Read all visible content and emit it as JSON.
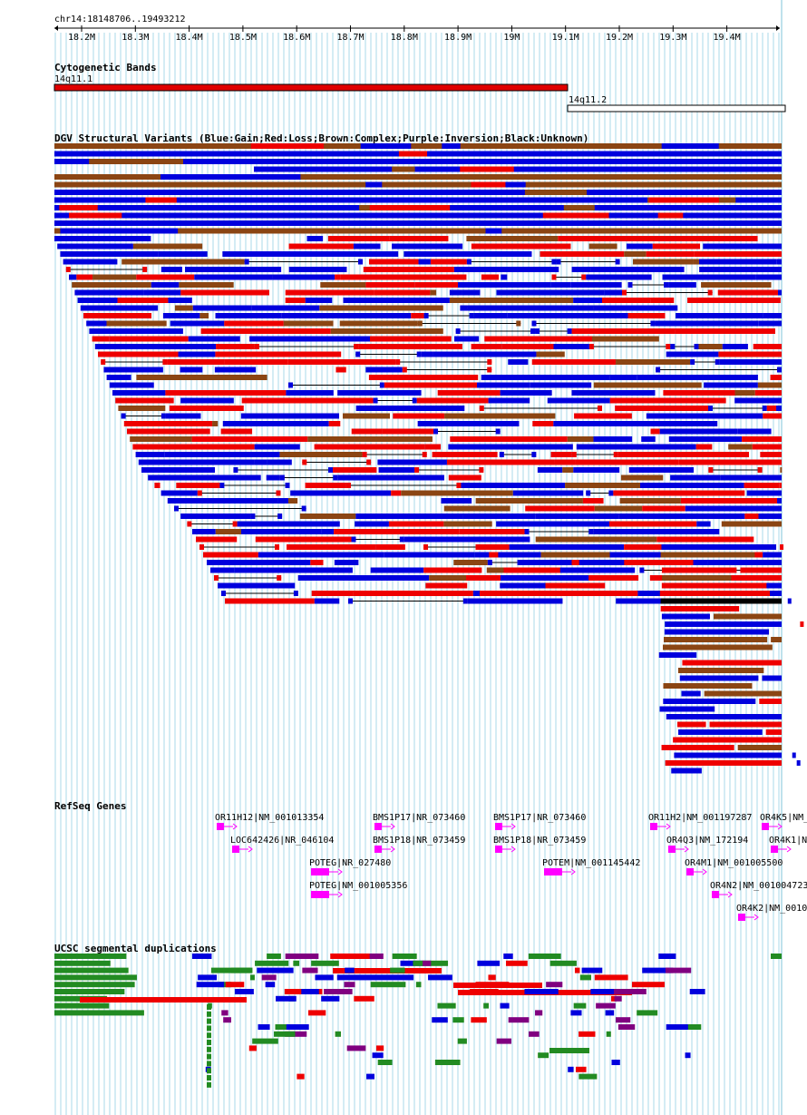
{
  "coords": "chr14:18148706..19493212",
  "ruler": {
    "ticks": [
      {
        "label": "18.2M",
        "mb": 18.2
      },
      {
        "label": "18.3M",
        "mb": 18.3
      },
      {
        "label": "18.4M",
        "mb": 18.4
      },
      {
        "label": "18.5M",
        "mb": 18.5
      },
      {
        "label": "18.6M",
        "mb": 18.6
      },
      {
        "label": "18.7M",
        "mb": 18.7
      },
      {
        "label": "18.8M",
        "mb": 18.8
      },
      {
        "label": "18.9M",
        "mb": 18.9
      },
      {
        "label": "19M",
        "mb": 19.0
      },
      {
        "label": "19.1M",
        "mb": 19.1
      },
      {
        "label": "19.2M",
        "mb": 19.2
      },
      {
        "label": "19.3M",
        "mb": 19.3
      },
      {
        "label": "19.4M",
        "mb": 19.4
      }
    ]
  },
  "tracks": {
    "cytobands": {
      "title": "Cytogenetic Bands",
      "bands": [
        {
          "name": "14q11.1",
          "color": "#e00000"
        },
        {
          "name": "14q11.2",
          "color": "#ffffff"
        }
      ]
    },
    "dgv": {
      "title": "DGV Structural Variants (Blue:Gain;Red:Loss;Brown:Complex;Purple:Inversion;Black:Unknown)",
      "colors": {
        "gain": "#0000dd",
        "loss": "#ee0000",
        "complex": "#8b4513",
        "inversion": "#800080",
        "unknown": "#000000"
      }
    },
    "refseq": {
      "title": "RefSeq Genes",
      "color": "#ff00ff",
      "genes": [
        {
          "label": "OR11H12|NM_001013354"
        },
        {
          "label": "LOC642426|NR_046104"
        },
        {
          "label": "POTEG|NR_027480"
        },
        {
          "label": "POTEG|NM_001005356"
        },
        {
          "label": "BMS1P17|NR_073460"
        },
        {
          "label": "BMS1P18|NR_073459"
        },
        {
          "label": "BMS1P17|NR_073460"
        },
        {
          "label": "BMS1P18|NR_073459"
        },
        {
          "label": "POTEM|NM_001145442"
        },
        {
          "label": "OR11H2|NM_001197287"
        },
        {
          "label": "OR4Q3|NM_172194"
        },
        {
          "label": "OR4M1|NM_001005500"
        },
        {
          "label": "OR4N2|NM_001004723"
        },
        {
          "label": "OR4K2|NM_0010"
        },
        {
          "label": "OR4K5|NM_"
        },
        {
          "label": "OR4K1|N"
        }
      ]
    },
    "segdups": {
      "title": "UCSC segmental duplications",
      "colors": {
        "green": "#228b22",
        "blue": "#0000dd",
        "purple": "#800080",
        "red": "#ee0000"
      }
    }
  }
}
